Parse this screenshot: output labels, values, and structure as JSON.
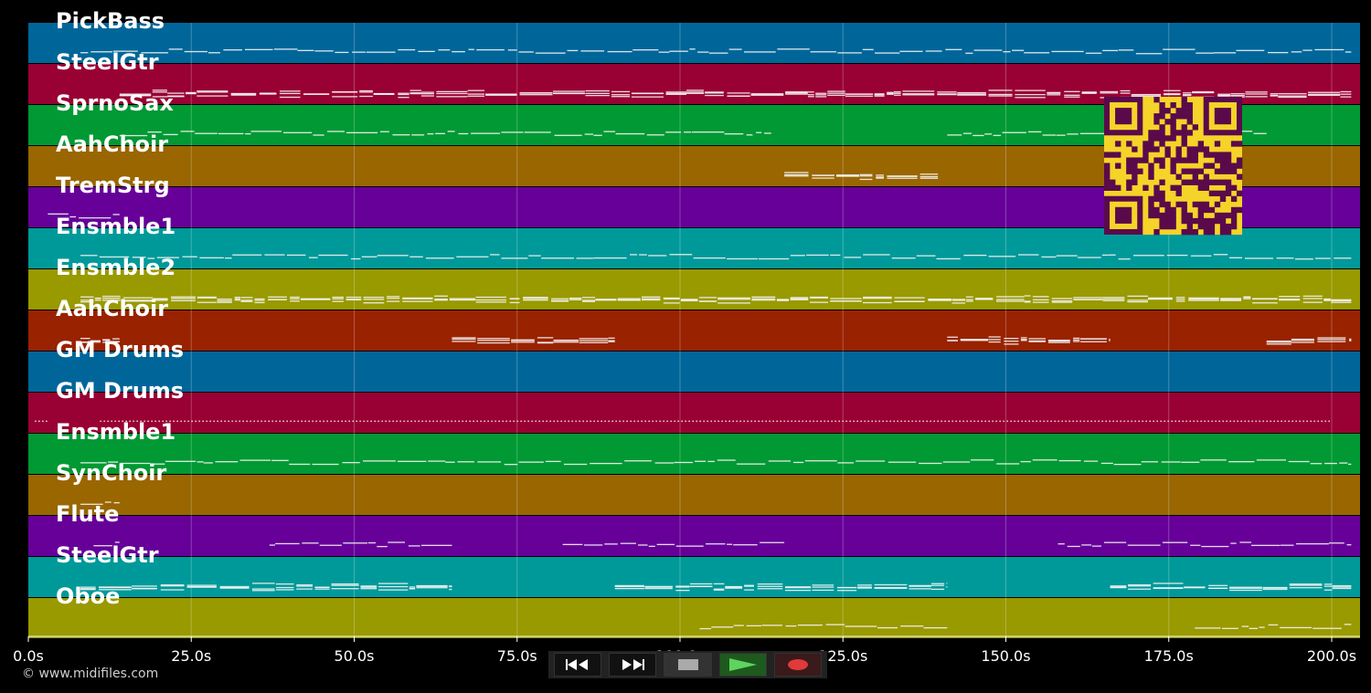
{
  "app": {
    "copyright": "© www.midifiles.com"
  },
  "timeline": {
    "duration_s": 200,
    "ticks": [
      "0.0s",
      "25.0s",
      "50.0s",
      "75.0s",
      "100.0s",
      "125.0s",
      "150.0s",
      "175.0s",
      "200.0s"
    ]
  },
  "tracks": [
    {
      "name": "PickBass",
      "color": "#006699",
      "segments": [
        [
          8,
          203
        ]
      ],
      "style": "line"
    },
    {
      "name": "SteelGtr",
      "color": "#990033",
      "segments": [
        [
          14,
          203
        ]
      ],
      "style": "dense"
    },
    {
      "name": "SprnoSax",
      "color": "#009933",
      "segments": [
        [
          14,
          114
        ],
        [
          141,
          190
        ]
      ],
      "style": "line"
    },
    {
      "name": "AahChoir",
      "color": "#996600",
      "segments": [
        [
          116,
          140
        ]
      ],
      "style": "dense"
    },
    {
      "name": "TremStrg",
      "color": "#660099",
      "segments": [
        [
          3,
          14
        ]
      ],
      "style": "line"
    },
    {
      "name": "Ensmble1",
      "color": "#009999",
      "segments": [
        [
          8,
          203
        ]
      ],
      "style": "line"
    },
    {
      "name": "Ensmble2",
      "color": "#999900",
      "segments": [
        [
          8,
          203
        ]
      ],
      "style": "dense"
    },
    {
      "name": "AahChoir",
      "color": "#992200",
      "segments": [
        [
          8,
          14
        ],
        [
          65,
          90
        ],
        [
          141,
          166
        ],
        [
          190,
          203
        ]
      ],
      "style": "dense"
    },
    {
      "name": "GM Drums",
      "color": "#006699",
      "segments": [],
      "style": "line"
    },
    {
      "name": "GM Drums",
      "color": "#990033",
      "segments": [
        [
          1,
          3
        ],
        [
          11,
          200
        ]
      ],
      "style": "dots"
    },
    {
      "name": "Ensmble1",
      "color": "#009933",
      "segments": [
        [
          8,
          203
        ]
      ],
      "style": "line"
    },
    {
      "name": "SynChoir",
      "color": "#996600",
      "segments": [
        [
          8,
          14
        ]
      ],
      "style": "line"
    },
    {
      "name": "Flute",
      "color": "#660099",
      "segments": [
        [
          10,
          14
        ],
        [
          37,
          65
        ],
        [
          82,
          116
        ],
        [
          158,
          203
        ]
      ],
      "style": "line"
    },
    {
      "name": "SteelGtr",
      "color": "#009999",
      "segments": [
        [
          8,
          65
        ],
        [
          90,
          141
        ],
        [
          166,
          203
        ]
      ],
      "style": "dense"
    },
    {
      "name": "Oboe",
      "color": "#999900",
      "segments": [
        [
          103,
          141
        ],
        [
          179,
          203
        ]
      ],
      "style": "line"
    }
  ],
  "qr": {
    "bg": "#f5d328",
    "fg": "#5a0a4a",
    "icon": "qr-code-icon"
  },
  "transport": {
    "buttons": [
      {
        "id": "rewind",
        "icon": "rewind-icon",
        "bg": "#111111"
      },
      {
        "id": "forward",
        "icon": "fast-forward-icon",
        "bg": "#111111"
      },
      {
        "id": "stop",
        "icon": "stop-icon",
        "bg": "#333333"
      },
      {
        "id": "play",
        "icon": "play-icon",
        "bg": "#1e5a1e"
      },
      {
        "id": "record",
        "icon": "record-icon",
        "bg": "#3a1a1a"
      }
    ]
  }
}
